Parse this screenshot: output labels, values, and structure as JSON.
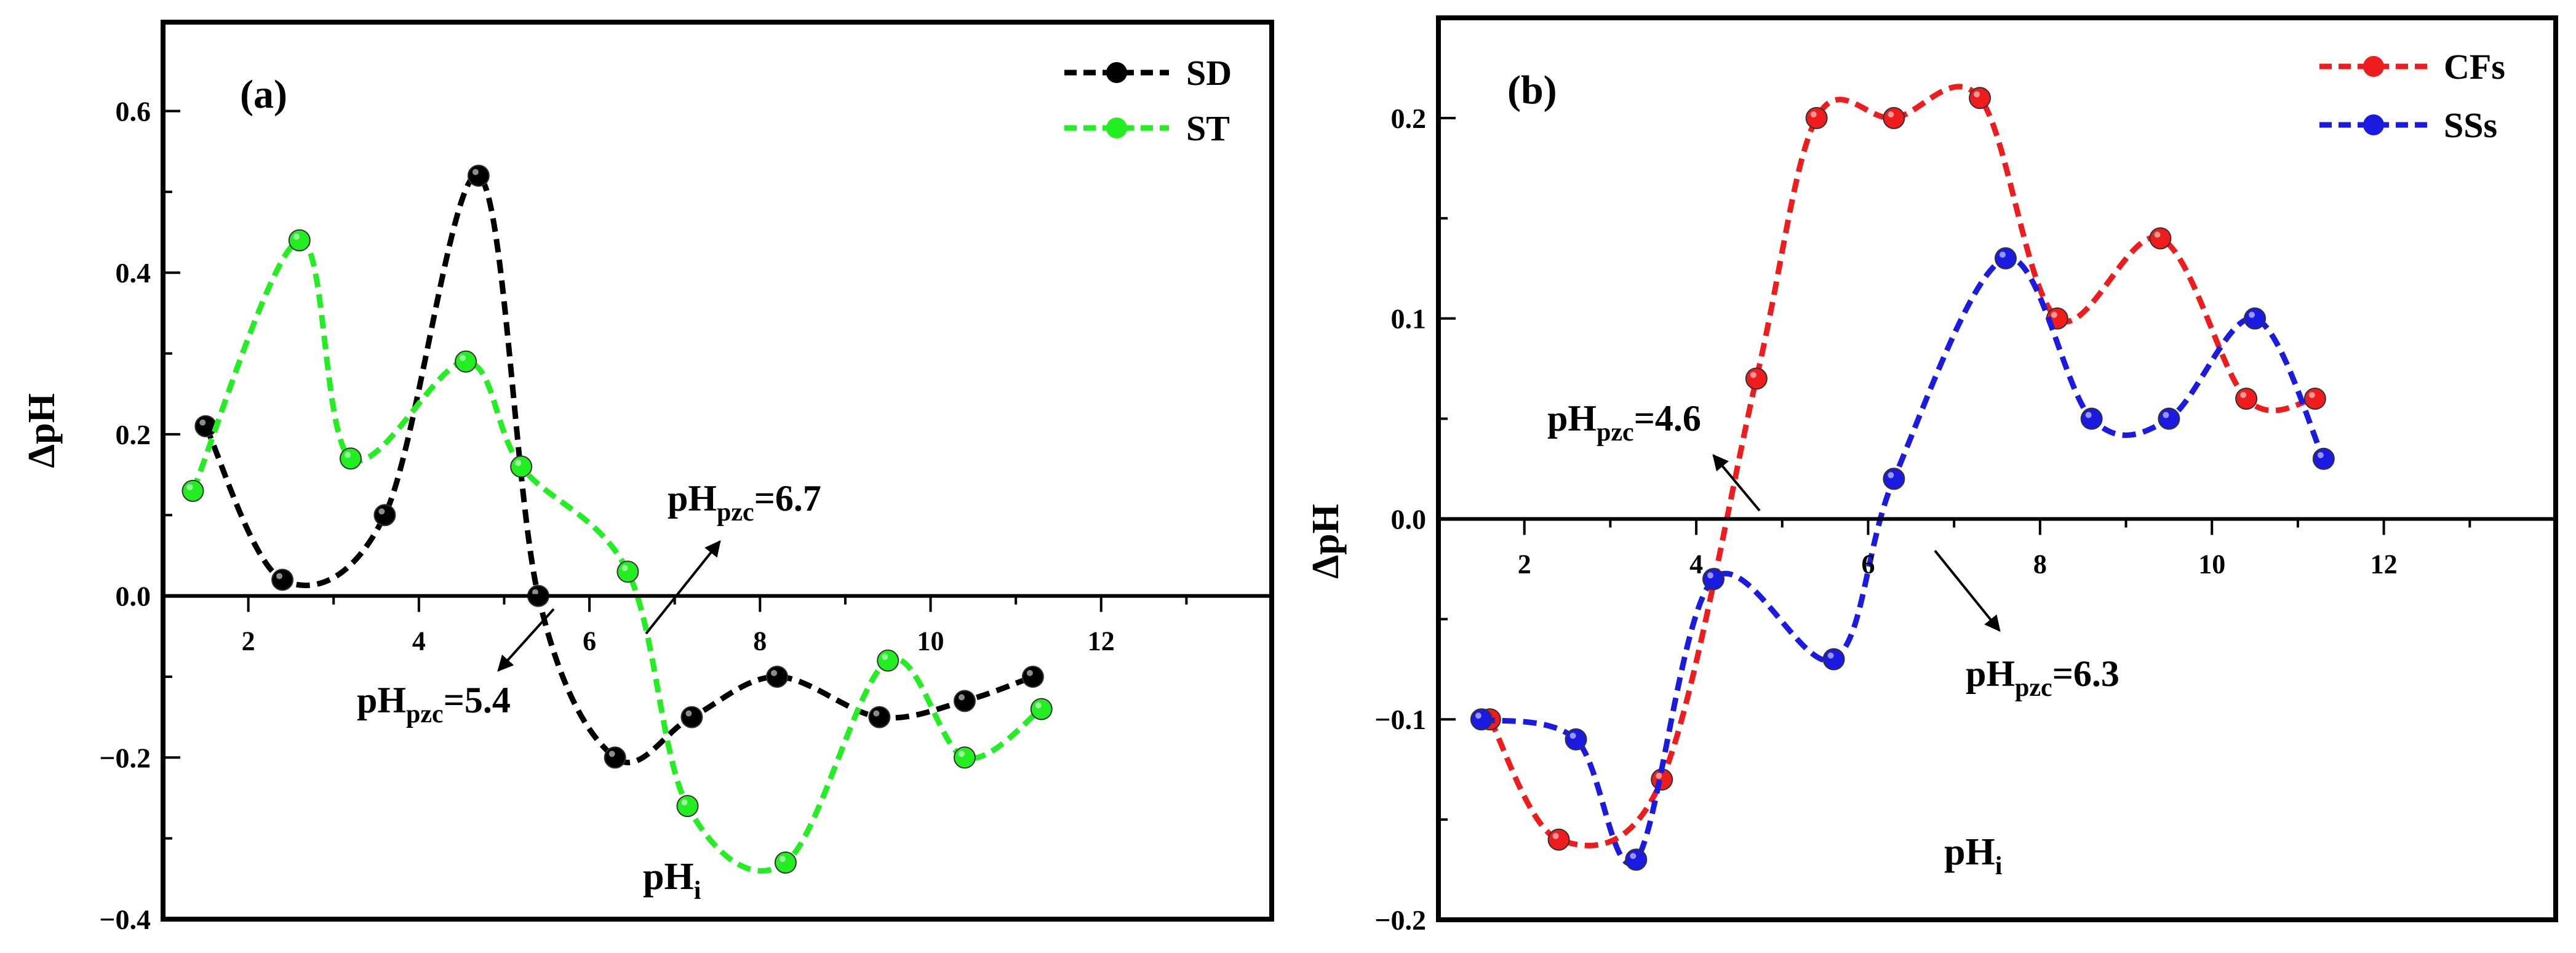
{
  "chart_data": [
    {
      "id": "a",
      "type": "line",
      "panel_label": "(a)",
      "xlabel_main": "pH",
      "xlabel_sub": "i",
      "ylabel": "ΔpH",
      "xlim": [
        1.0,
        14.0
      ],
      "ylim": [
        -0.4,
        0.71
      ],
      "xticks": [
        2,
        4,
        6,
        8,
        10,
        12
      ],
      "yticks": [
        -0.4,
        -0.2,
        0.0,
        0.2,
        0.4,
        0.6
      ],
      "ytick_labels": [
        "−0.4",
        "−0.2",
        "0.0",
        "0.2",
        "0.4",
        "0.6"
      ],
      "legend_position": "top-right",
      "series": [
        {
          "name": "SD",
          "color": "#000000",
          "x": [
            1.5,
            2.4,
            3.6,
            4.7,
            5.4,
            6.3,
            7.2,
            8.2,
            9.4,
            10.4,
            11.2
          ],
          "y": [
            0.21,
            0.02,
            0.1,
            0.52,
            0.0,
            -0.2,
            -0.15,
            -0.1,
            -0.15,
            -0.13,
            -0.1
          ]
        },
        {
          "name": "ST",
          "color": "#22ee22",
          "x": [
            1.35,
            2.6,
            3.2,
            4.55,
            5.2,
            6.45,
            7.15,
            8.3,
            9.5,
            10.4,
            11.3
          ],
          "y": [
            0.13,
            0.44,
            0.17,
            0.29,
            0.16,
            0.03,
            -0.26,
            -0.33,
            -0.08,
            -0.2,
            -0.14
          ]
        }
      ],
      "annotations": [
        {
          "main": "pH",
          "sub": "pzc",
          "value": "=6.7"
        },
        {
          "main": "pH",
          "sub": "pzc",
          "value": "=5.4"
        }
      ]
    },
    {
      "id": "b",
      "type": "line",
      "panel_label": "(b)",
      "xlabel_main": "pH",
      "xlabel_sub": "i",
      "ylabel": "ΔpH",
      "xlim": [
        1.0,
        14.0
      ],
      "ylim": [
        -0.2,
        0.25
      ],
      "xticks": [
        2,
        4,
        6,
        8,
        10,
        12
      ],
      "yticks": [
        -0.2,
        -0.1,
        0.0,
        0.1,
        0.2
      ],
      "ytick_labels": [
        "−0.2",
        "−0.1",
        "0.0",
        "0.1",
        "0.2"
      ],
      "legend_position": "top-right",
      "series": [
        {
          "name": "CFs",
          "color": "#ee1c1c",
          "x": [
            1.6,
            2.4,
            3.6,
            4.7,
            5.4,
            6.3,
            7.3,
            8.2,
            9.4,
            10.4,
            11.2
          ],
          "y": [
            -0.1,
            -0.16,
            -0.13,
            0.07,
            0.2,
            0.2,
            0.21,
            0.1,
            0.14,
            0.06,
            0.06
          ]
        },
        {
          "name": "SSs",
          "color": "#1a1ae0",
          "x": [
            1.5,
            2.6,
            3.3,
            4.2,
            5.6,
            6.3,
            7.6,
            8.6,
            9.5,
            10.5,
            11.3
          ],
          "y": [
            -0.1,
            -0.11,
            -0.17,
            -0.03,
            -0.07,
            0.02,
            0.13,
            0.05,
            0.05,
            0.1,
            0.03
          ]
        }
      ],
      "annotations": [
        {
          "main": "pH",
          "sub": "pzc",
          "value": "=4.6"
        },
        {
          "main": "pH",
          "sub": "pzc",
          "value": "=6.3"
        }
      ]
    }
  ]
}
